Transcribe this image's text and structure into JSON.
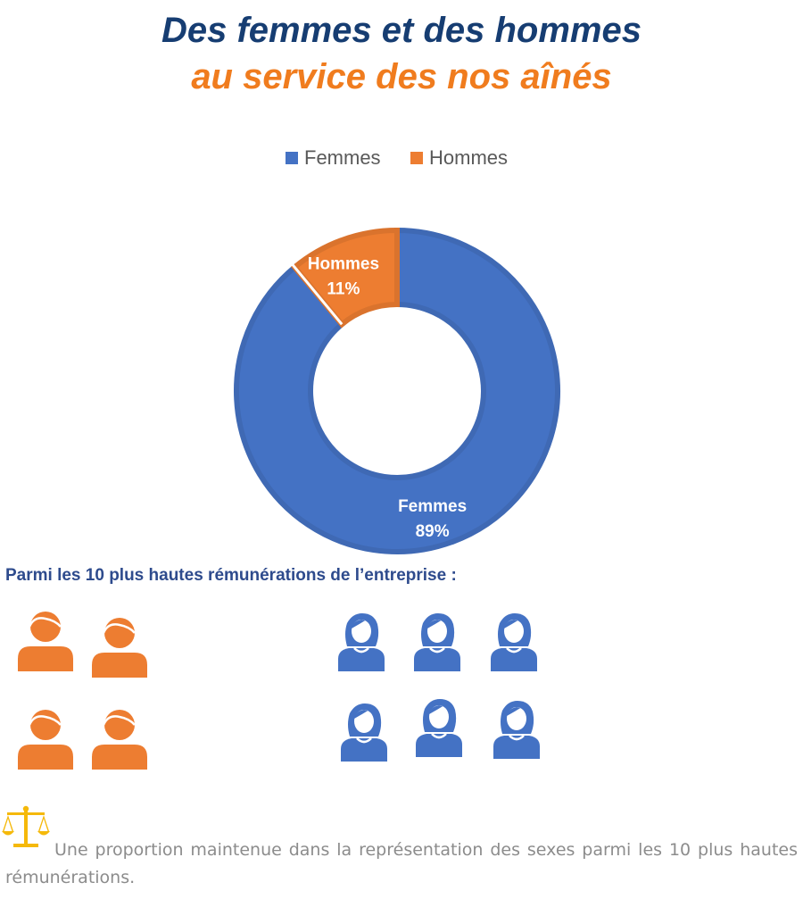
{
  "header": {
    "title_line1": "Des femmes et des hommes",
    "title_line2": "au service des nos aînés"
  },
  "chart_data": {
    "type": "pie",
    "donut": true,
    "categories": [
      "Femmes",
      "Hommes"
    ],
    "values": [
      89,
      11
    ],
    "unit": "%",
    "data_labels": [
      "89%",
      "11%"
    ],
    "colors": [
      "#4472c4",
      "#ed7d31"
    ],
    "legend": [
      "Femmes",
      "Hommes"
    ],
    "legend_position": "top"
  },
  "top_earners": {
    "heading": "Parmi les 10 plus hautes rémunérations de l’entreprise :",
    "men_count": 4,
    "women_count": 6,
    "men_color": "#ed7d31",
    "women_color": "#4472c4",
    "men_icon": "man-icon",
    "women_icon": "woman-icon"
  },
  "note": {
    "icon": "scale-icon",
    "icon_color": "#f5b90a",
    "text": "Une proportion maintenue dans la représentation des sexes parmi les 10 plus hautes rémunérations."
  }
}
